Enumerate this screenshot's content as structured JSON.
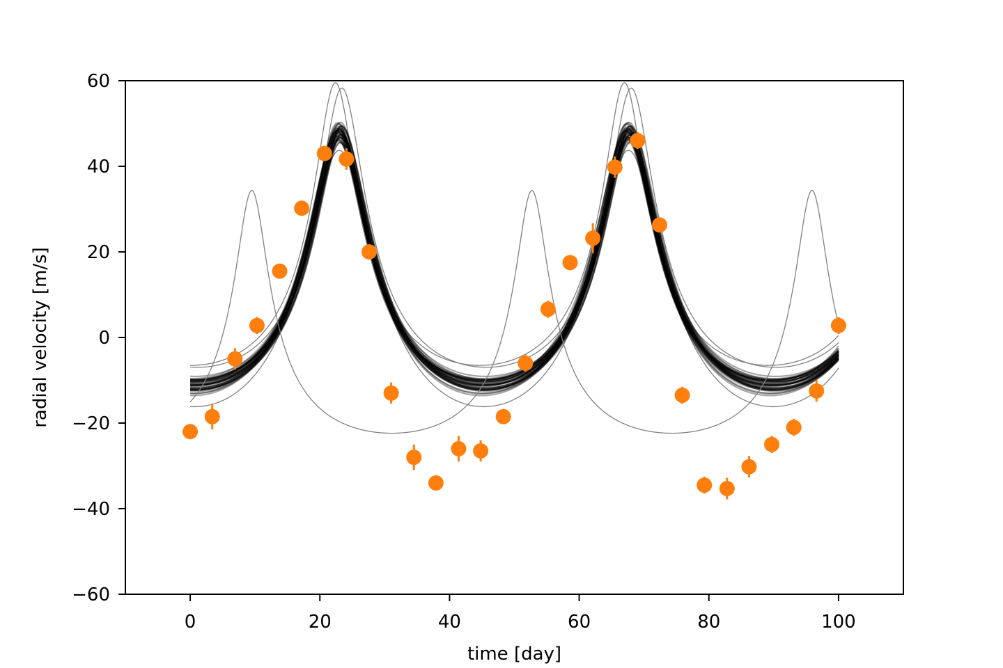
{
  "chart_data": {
    "type": "line",
    "title": "",
    "xlabel": "time [day]",
    "ylabel": "radial velocity [m/s]",
    "xlim": [
      -10,
      110
    ],
    "ylim": [
      -60,
      60
    ],
    "xticks": [
      0,
      20,
      40,
      60,
      80,
      100
    ],
    "yticks": [
      -60,
      -40,
      -20,
      0,
      20,
      40,
      60
    ],
    "xtick_labels": [
      "0",
      "20",
      "40",
      "60",
      "80",
      "100"
    ],
    "ytick_labels": [
      "−60",
      "−40",
      "−20",
      "0",
      "20",
      "40",
      "60"
    ],
    "grid": false,
    "legend": "none",
    "colors": {
      "data": "#ff7f0e",
      "posterior": "#000000",
      "outlier_sample": "#808080"
    },
    "model": {
      "x_range": [
        0,
        100
      ],
      "period_days": 44.6,
      "peak_phase_day": 23,
      "semi_amplitude": 42,
      "eccentricity": 0.42,
      "offset": 6,
      "n_posterior_samples": 40,
      "outlier_samples": [
        {
          "period_days": 43.2,
          "peak_phase_day": 9.5,
          "semi_amplitude": 44,
          "eccentricity": 0.55,
          "offset": -9.6,
          "tail_day": 24
        }
      ]
    },
    "series": [
      {
        "style": "errorbar-markers",
        "x": [
          0,
          3.4,
          6.9,
          10.3,
          13.8,
          17.2,
          20.7,
          24.1,
          27.6,
          31.0,
          34.5,
          37.9,
          41.4,
          44.8,
          48.3,
          51.7,
          55.2,
          58.6,
          62.1,
          65.5,
          69.0,
          72.4,
          75.9,
          79.3,
          82.8,
          86.2,
          89.7,
          93.1,
          96.6,
          100
        ],
        "y": [
          -22,
          -18.5,
          -5,
          2.8,
          15.5,
          30.2,
          43,
          41.7,
          20,
          -13,
          -28,
          -34,
          -26,
          -26.5,
          -18.5,
          -6,
          6.6,
          17.5,
          23.2,
          39.8,
          46,
          26.3,
          -13.5,
          -34.5,
          -35.3,
          -30.2,
          -25,
          -21,
          -12.5,
          2.8
        ],
        "yerr": [
          1.5,
          3.0,
          2.5,
          2.0,
          1.5,
          1.5,
          1.5,
          2.5,
          1.5,
          2.5,
          3.0,
          1.5,
          3.0,
          2.5,
          1.5,
          2.0,
          2.0,
          1.5,
          3.5,
          2.5,
          2.0,
          1.5,
          2.0,
          2.0,
          2.5,
          2.5,
          2.0,
          2.0,
          2.5,
          2.0
        ]
      }
    ]
  }
}
